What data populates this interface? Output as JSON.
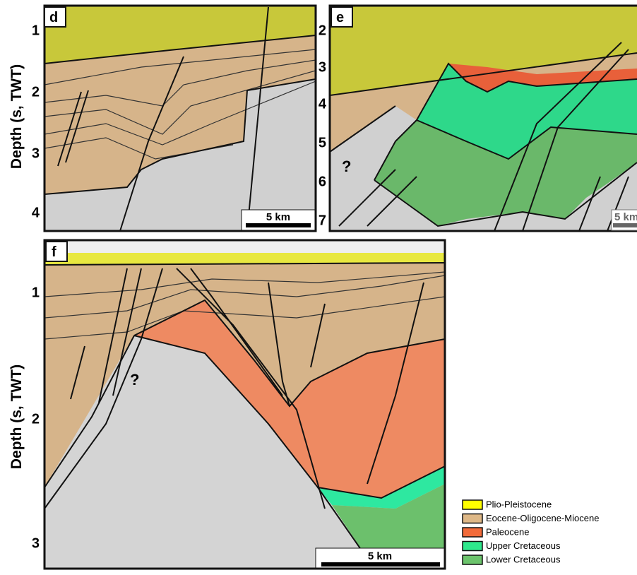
{
  "panels": [
    {
      "label": "d",
      "axis_title": "Depth (s, TWT)",
      "ticks": [
        1,
        2,
        3,
        4
      ],
      "scale_bar": "5 km"
    },
    {
      "label": "e",
      "ticks": [
        2,
        3,
        4,
        5,
        6,
        7
      ],
      "scale_bar": "5 km",
      "annotation": "?"
    },
    {
      "label": "f",
      "axis_title": "Depth (s, TWT)",
      "ticks": [
        1,
        2,
        3
      ],
      "scale_bar": "5 km",
      "annotation": "?"
    }
  ],
  "legend": [
    {
      "label": "Plio-Pleistocene",
      "color": "#ffff00"
    },
    {
      "label": "Eocene-Oligocene-Miocene",
      "color": "#deb887"
    },
    {
      "label": "Paleocene",
      "color": "#f26b3a"
    },
    {
      "label": "Upper Cretaceous",
      "color": "#2ee88c"
    },
    {
      "label": "Lower Cretaceous",
      "color": "#6cc46c"
    }
  ]
}
